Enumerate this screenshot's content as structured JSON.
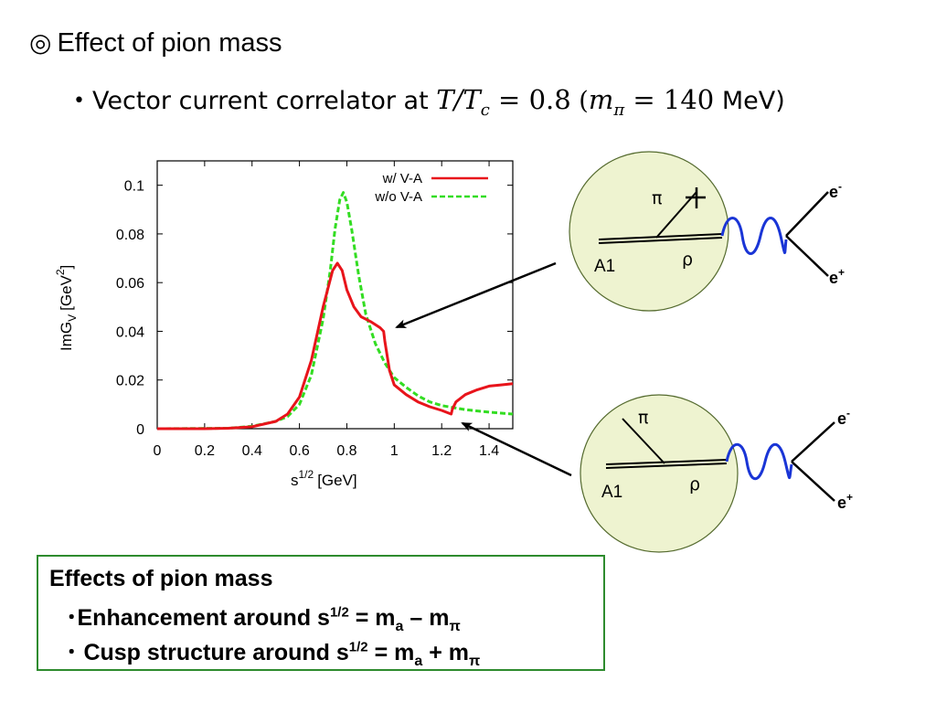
{
  "slide": {
    "title_mark": "◎",
    "title": "Effect of pion mass",
    "subtitle": {
      "bullet": "•",
      "text": "Vector current correlator at",
      "temp_ratio": "T/T",
      "temp_sub": "c",
      "temp_value": "= 0.8",
      "paren_open": "(",
      "mass_symbol": "m",
      "mass_sub": "π",
      "mass_value": "= 140",
      "unit": "MeV)"
    }
  },
  "chart_data": {
    "type": "line",
    "xlabel": "s",
    "xlabel_sup": "1/2",
    "xlabel_unit": "[GeV]",
    "ylabel": "ImG",
    "ylabel_sub": "V",
    "ylabel_unit_pre": "[GeV",
    "ylabel_unit_sup": "2",
    "ylabel_unit_post": "]",
    "xlim": [
      0,
      1.5
    ],
    "ylim": [
      0,
      0.11
    ],
    "xticks": [
      "0",
      "0.2",
      "0.4",
      "0.6",
      "0.8",
      "1",
      "1.2",
      "1.4"
    ],
    "xtick_values": [
      0,
      0.2,
      0.4,
      0.6,
      0.8,
      1.0,
      1.2,
      1.4
    ],
    "yticks": [
      "0",
      "0.02",
      "0.04",
      "0.06",
      "0.08",
      "0.1"
    ],
    "ytick_values": [
      0,
      0.02,
      0.04,
      0.06,
      0.08,
      0.1
    ],
    "legend_position": "top-right",
    "series": [
      {
        "name": "w/ V-A",
        "color": "#e8141b",
        "dash": "solid",
        "points": [
          [
            0,
            0
          ],
          [
            0.2,
            0
          ],
          [
            0.3,
            0.0002
          ],
          [
            0.4,
            0.0008
          ],
          [
            0.5,
            0.003
          ],
          [
            0.55,
            0.006
          ],
          [
            0.6,
            0.013
          ],
          [
            0.65,
            0.028
          ],
          [
            0.7,
            0.05
          ],
          [
            0.74,
            0.065
          ],
          [
            0.76,
            0.068
          ],
          [
            0.78,
            0.065
          ],
          [
            0.8,
            0.057
          ],
          [
            0.83,
            0.05
          ],
          [
            0.86,
            0.046
          ],
          [
            0.9,
            0.044
          ],
          [
            0.94,
            0.0415
          ],
          [
            0.955,
            0.04
          ],
          [
            0.96,
            0.036
          ],
          [
            0.98,
            0.024
          ],
          [
            1.0,
            0.018
          ],
          [
            1.05,
            0.014
          ],
          [
            1.1,
            0.011
          ],
          [
            1.15,
            0.009
          ],
          [
            1.2,
            0.0075
          ],
          [
            1.24,
            0.006
          ],
          [
            1.245,
            0.008
          ],
          [
            1.26,
            0.011
          ],
          [
            1.3,
            0.014
          ],
          [
            1.35,
            0.016
          ],
          [
            1.4,
            0.0175
          ],
          [
            1.45,
            0.018
          ],
          [
            1.5,
            0.0185
          ]
        ]
      },
      {
        "name": "w/o V-A",
        "color": "#33dd22",
        "dash": "dashed",
        "points": [
          [
            0,
            0
          ],
          [
            0.3,
            0.0002
          ],
          [
            0.4,
            0.001
          ],
          [
            0.5,
            0.003
          ],
          [
            0.55,
            0.005
          ],
          [
            0.6,
            0.01
          ],
          [
            0.65,
            0.022
          ],
          [
            0.7,
            0.045
          ],
          [
            0.73,
            0.065
          ],
          [
            0.75,
            0.082
          ],
          [
            0.77,
            0.094
          ],
          [
            0.785,
            0.097
          ],
          [
            0.8,
            0.093
          ],
          [
            0.82,
            0.082
          ],
          [
            0.85,
            0.063
          ],
          [
            0.88,
            0.047
          ],
          [
            0.92,
            0.035
          ],
          [
            0.96,
            0.027
          ],
          [
            1.0,
            0.021
          ],
          [
            1.05,
            0.017
          ],
          [
            1.1,
            0.0135
          ],
          [
            1.15,
            0.011
          ],
          [
            1.2,
            0.0095
          ],
          [
            1.3,
            0.0078
          ],
          [
            1.4,
            0.0068
          ],
          [
            1.5,
            0.006
          ]
        ]
      }
    ]
  },
  "diagram_top": {
    "label_pi": "π",
    "label_rho": "ρ",
    "label_a1": "A1",
    "label_e_minus": "e",
    "label_e_minus_sup": "-",
    "label_e_plus": "e",
    "label_e_plus_sup": "+"
  },
  "diagram_bottom": {
    "label_pi": "π",
    "label_rho": "ρ",
    "label_a1": "A1",
    "label_e_minus": "e",
    "label_e_minus_sup": "-",
    "label_e_plus": "e",
    "label_e_plus_sup": "+"
  },
  "colors": {
    "circle_fill": "#eef3d0",
    "circle_stroke": "#556b2f",
    "photon": "#1a35d6",
    "box_border": "#2e8b2e"
  },
  "note": {
    "heading": "Effects of pion mass",
    "item1_prefix": "･Enhancement around s",
    "item1_sup": "1/2",
    "item1_eq": " = m",
    "item1_sub_a": "a",
    "item1_op": " – m",
    "item1_sub_pi": "π",
    "item2_prefix": "･ Cusp structure around s",
    "item2_sup": "1/2",
    "item2_eq": " = m",
    "item2_sub_a": "a",
    "item2_op": " + m",
    "item2_sub_pi": "π"
  }
}
